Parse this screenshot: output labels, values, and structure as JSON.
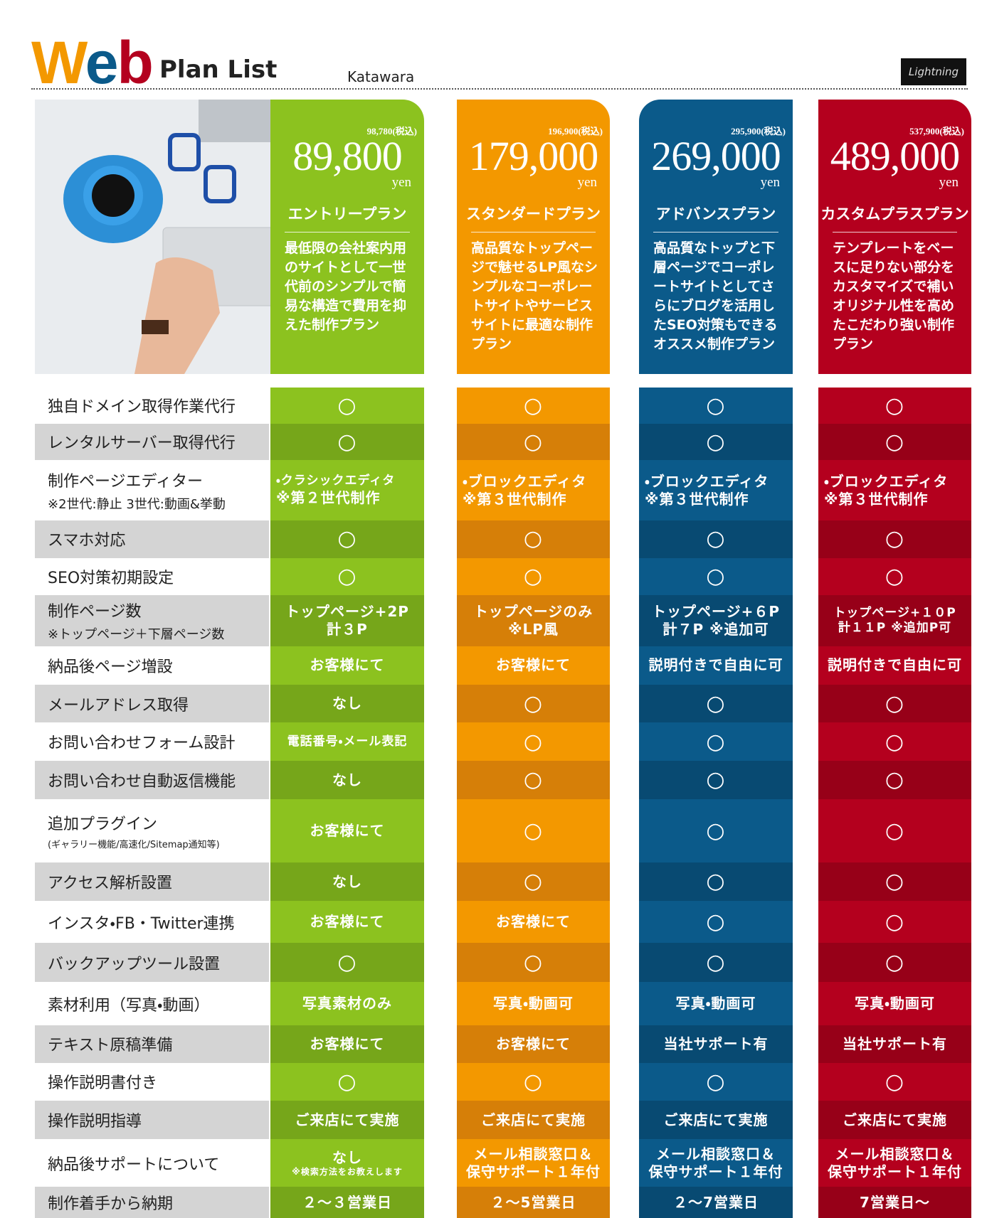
{
  "header": {
    "title_w": "W",
    "title_e": "e",
    "title_b": "b",
    "subtitle": "Plan List",
    "brand": "Katawara",
    "logo": "Lightning"
  },
  "plans": [
    {
      "tax": "98,780(税込)",
      "price": "89,800",
      "unit": "yen",
      "name": "エントリープラン",
      "desc": "最低限の会社案内用のサイトとして一世代前のシンプルで簡易な構造で費用を抑えた制作プラン",
      "color": "#8cc21f",
      "dark": "#76a61a"
    },
    {
      "tax": "196,900(税込)",
      "price": "179,000",
      "unit": "yen",
      "name": "スタンダードプラン",
      "desc": "高品質なトップページで魅せるLP風なシンプルなコーポレートサイトやサービスサイトに最適な制作プラン",
      "color": "#f39800",
      "dark": "#d67f08"
    },
    {
      "tax": "295,900(税込)",
      "price": "269,000",
      "unit": "yen",
      "name": "アドバンスプラン",
      "desc": "高品質なトップと下層ページでコーポレートサイトとしてさらにブログを活用したSEO対策もできるオススメ制作プラン",
      "color": "#0b5a8a",
      "dark": "#084a72"
    },
    {
      "tax": "537,900(税込)",
      "price": "489,000",
      "unit": "yen",
      "name": "カスタムプラスプラン",
      "desc": "テンプレートをベースに足りない部分をカスタマイズで補いオリジナル性を高めたこだわり強い制作プラン",
      "color": "#b4001e",
      "dark": "#970018"
    }
  ],
  "rows": [
    {
      "label": "独自ドメイン取得作業代行",
      "cells": [
        [
          "○"
        ],
        [
          "○"
        ],
        [
          "○"
        ],
        [
          "○"
        ]
      ]
    },
    {
      "label": "レンタルサーバー取得代行",
      "cells": [
        [
          "○"
        ],
        [
          "○"
        ],
        [
          "○"
        ],
        [
          "○"
        ]
      ]
    },
    {
      "label": "制作ページエディター",
      "note": "※2世代:静止 3世代:動画&挙動",
      "cells": [
        [
          "・クラシックエディタ",
          "※第２世代制作"
        ],
        [
          "・ブロックエディタ",
          "※第３世代制作"
        ],
        [
          "・ブロックエディタ",
          "※第３世代制作"
        ],
        [
          "・ブロックエディタ",
          "※第３世代制作"
        ]
      ]
    },
    {
      "label": "スマホ対応",
      "cells": [
        [
          "○"
        ],
        [
          "○"
        ],
        [
          "○"
        ],
        [
          "○"
        ]
      ]
    },
    {
      "label": "SEO対策初期設定",
      "cells": [
        [
          "○"
        ],
        [
          "○"
        ],
        [
          "○"
        ],
        [
          "○"
        ]
      ]
    },
    {
      "label": "制作ページ数",
      "note": "※トップページ＋下層ページ数",
      "cells": [
        [
          "トップページ+2P",
          "計３P"
        ],
        [
          "トップページのみ",
          "※LP風"
        ],
        [
          "トップページ+６P",
          "計７P ※追加可"
        ],
        [
          "トップページ+１０P",
          "計１１P ※追加P可"
        ]
      ]
    },
    {
      "label": "納品後ページ増設",
      "cells": [
        [
          "お客様にて"
        ],
        [
          "お客様にて"
        ],
        [
          "説明付きで自由に可"
        ],
        [
          "説明付きで自由に可"
        ]
      ]
    },
    {
      "label": "メールアドレス取得",
      "cells": [
        [
          "なし"
        ],
        [
          "○"
        ],
        [
          "○"
        ],
        [
          "○"
        ]
      ]
    },
    {
      "label": "お問い合わせフォーム設計",
      "cells": [
        [
          "電話番号・メール表記"
        ],
        [
          "○"
        ],
        [
          "○"
        ],
        [
          "○"
        ]
      ]
    },
    {
      "label": "お問い合わせ自動返信機能",
      "cells": [
        [
          "なし"
        ],
        [
          "○"
        ],
        [
          "○"
        ],
        [
          "○"
        ]
      ]
    },
    {
      "label": "追加プラグイン",
      "note": "(ギャラリー機能/高速化/Sitemap通知等)",
      "cells": [
        [
          "お客様にて"
        ],
        [
          "○"
        ],
        [
          "○"
        ],
        [
          "○"
        ]
      ]
    },
    {
      "label": "アクセス解析設置",
      "cells": [
        [
          "なし"
        ],
        [
          "○"
        ],
        [
          "○"
        ],
        [
          "○"
        ]
      ]
    },
    {
      "label": "インスタ・FB・Twitter連携",
      "cells": [
        [
          "お客様にて"
        ],
        [
          "お客様にて"
        ],
        [
          "○"
        ],
        [
          "○"
        ]
      ]
    },
    {
      "label": "バックアップツール設置",
      "cells": [
        [
          "○"
        ],
        [
          "○"
        ],
        [
          "○"
        ],
        [
          "○"
        ]
      ]
    },
    {
      "label": "素材利用（写真・動画）",
      "cells": [
        [
          "写真素材のみ"
        ],
        [
          "写真・動画可"
        ],
        [
          "写真・動画可"
        ],
        [
          "写真・動画可"
        ]
      ]
    },
    {
      "label": "テキスト原稿準備",
      "cells": [
        [
          "お客様にて"
        ],
        [
          "お客様にて"
        ],
        [
          "当社サポート有"
        ],
        [
          "当社サポート有"
        ]
      ]
    },
    {
      "label": "操作説明書付き",
      "cells": [
        [
          "○"
        ],
        [
          "○"
        ],
        [
          "○"
        ],
        [
          "○"
        ]
      ]
    },
    {
      "label": "操作説明指導",
      "cells": [
        [
          "ご来店にて実施"
        ],
        [
          "ご来店にて実施"
        ],
        [
          "ご来店にて実施"
        ],
        [
          "ご来店にて実施"
        ]
      ]
    },
    {
      "label": "納品後サポートについて",
      "cells": [
        [
          "なし",
          "※検索方法をお教えします"
        ],
        [
          "メール相談窓口＆",
          "保守サポート１年付"
        ],
        [
          "メール相談窓口＆",
          "保守サポート１年付"
        ],
        [
          "メール相談窓口＆",
          "保守サポート１年付"
        ]
      ]
    },
    {
      "label": "制作着手から納期",
      "cells": [
        [
          "２～３営業日"
        ],
        [
          "２～5営業日"
        ],
        [
          "２～7営業日"
        ],
        [
          "7営業日～"
        ]
      ]
    }
  ]
}
